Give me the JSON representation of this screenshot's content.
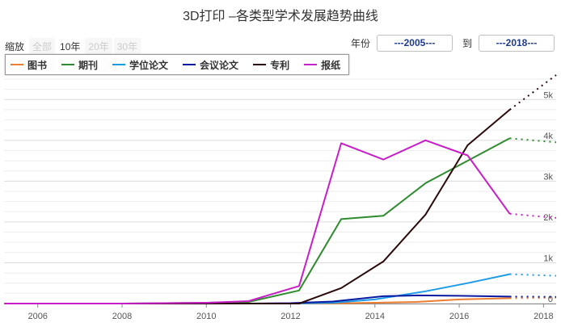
{
  "title": "3D打印 –各类型学术发展趋势曲线",
  "zoom": {
    "label": "缩放",
    "buttons": [
      {
        "label": "全部",
        "active": false
      },
      {
        "label": "10年",
        "active": true
      },
      {
        "label": "20年",
        "active": false
      },
      {
        "label": "30年",
        "active": false
      }
    ]
  },
  "range": {
    "from_label": "年份",
    "from_value": "---2005---",
    "to_label": "到",
    "to_value": "---2018---"
  },
  "chart_data": {
    "type": "line",
    "title": "3D打印 –各类型学术发展趋势曲线",
    "xlabel": "",
    "ylabel": "",
    "xlim": [
      2005.2,
      2018.3
    ],
    "ylim": [
      0,
      5500
    ],
    "x_ticks": [
      2006,
      2008,
      2010,
      2012,
      2014,
      2016,
      2018
    ],
    "y_ticks": [
      0,
      1000,
      2000,
      3000,
      4000,
      5000
    ],
    "y_tick_labels": [
      "0",
      "1k",
      "2k",
      "3k",
      "4k",
      "5k"
    ],
    "grid": true,
    "legend_position": "top-left",
    "series": [
      {
        "name": "图书",
        "color": "#ed7d31",
        "x": [
          2005.2,
          2006,
          2007,
          2008,
          2009,
          2010,
          2011,
          2012,
          2013,
          2014,
          2015,
          2016,
          2017.2
        ],
        "values": [
          0,
          0,
          0,
          0,
          0,
          0,
          0,
          0,
          5,
          20,
          40,
          100,
          130
        ],
        "forecast": {
          "x": [
            2017.2,
            2018.3
          ],
          "values": [
            130,
            140
          ]
        }
      },
      {
        "name": "期刊",
        "color": "#2e8b2e",
        "x": [
          2005.2,
          2006,
          2007,
          2008,
          2009,
          2010,
          2011,
          2012.2,
          2013.2,
          2014.2,
          2015.2,
          2016.2,
          2017.2
        ],
        "values": [
          0,
          0,
          0,
          0,
          10,
          20,
          40,
          320,
          2070,
          2150,
          2950,
          3500,
          4050
        ],
        "forecast": {
          "x": [
            2017.2,
            2018.3
          ],
          "values": [
            4050,
            3950
          ]
        }
      },
      {
        "name": "学位论文",
        "color": "#1e9be8",
        "x": [
          2005.2,
          2006,
          2007,
          2008,
          2009,
          2010,
          2011,
          2012,
          2013,
          2014,
          2015.2,
          2016.2,
          2017.2
        ],
        "values": [
          0,
          0,
          0,
          0,
          0,
          0,
          0,
          0,
          20,
          100,
          300,
          500,
          720
        ],
        "forecast": {
          "x": [
            2017.2,
            2018.3
          ],
          "values": [
            720,
            680
          ]
        }
      },
      {
        "name": "会议论文",
        "color": "#0a1aa0",
        "x": [
          2005.2,
          2006,
          2007,
          2008,
          2009,
          2010,
          2011,
          2012,
          2013,
          2014.2,
          2015,
          2016,
          2017.2
        ],
        "values": [
          0,
          0,
          0,
          0,
          0,
          0,
          0,
          10,
          50,
          180,
          200,
          190,
          170
        ],
        "forecast": {
          "x": [
            2017.2,
            2018.3
          ],
          "values": [
            170,
            165
          ]
        }
      },
      {
        "name": "专利",
        "color": "#2a0a0a",
        "x": [
          2005.2,
          2006,
          2007,
          2008,
          2009,
          2010,
          2011,
          2012.2,
          2013.2,
          2014.2,
          2015.2,
          2016.2,
          2017.2
        ],
        "values": [
          0,
          0,
          0,
          0,
          0,
          0,
          0,
          0,
          380,
          1030,
          2180,
          3880,
          4750
        ],
        "forecast": {
          "x": [
            2017.2,
            2018.3
          ],
          "values": [
            4750,
            5600
          ]
        }
      },
      {
        "name": "报纸",
        "color": "#c71ec7",
        "x": [
          2005.2,
          2006,
          2007,
          2008,
          2009,
          2010,
          2011,
          2012.2,
          2013.2,
          2014.2,
          2015.2,
          2016.2,
          2017.2
        ],
        "values": [
          0,
          0,
          0,
          0,
          10,
          20,
          60,
          430,
          3930,
          3530,
          4000,
          3630,
          2200
        ],
        "forecast": {
          "x": [
            2017.2,
            2018.3
          ],
          "values": [
            2200,
            2100
          ]
        }
      }
    ]
  }
}
